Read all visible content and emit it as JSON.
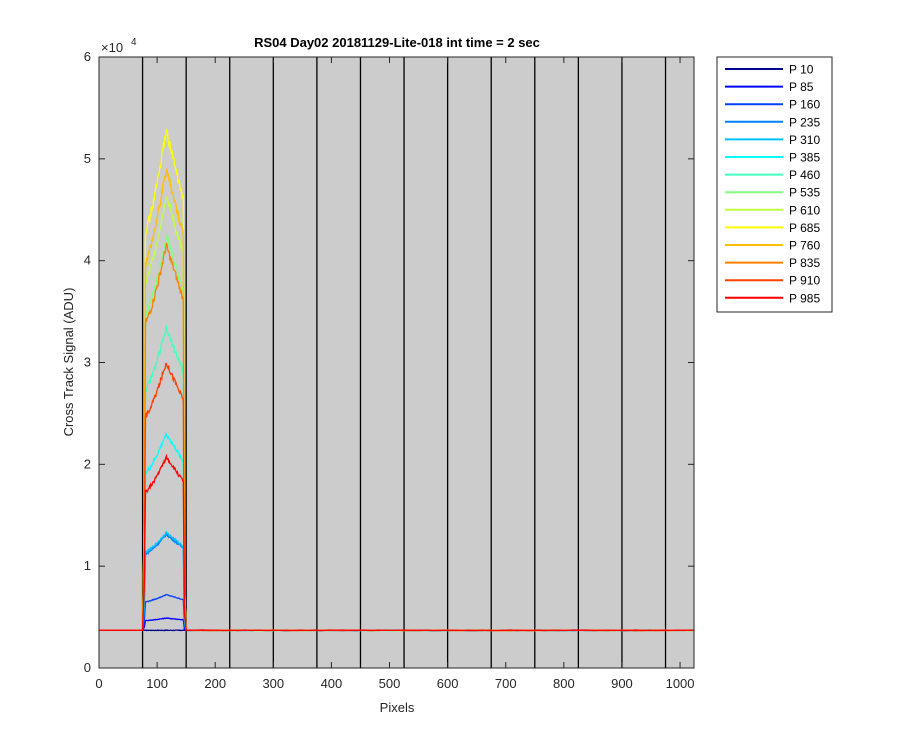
{
  "chart_data": {
    "type": "line",
    "title": "RS04 Day02 20181129-Lite-018 int time = 2 sec",
    "xlabel": "Pixels",
    "ylabel": "Cross Track Signal (ADU)",
    "y_exponent_label": "×10",
    "y_exponent_power": "4",
    "xlim": [
      0,
      1024
    ],
    "ylim": [
      0,
      60000
    ],
    "x_ticks": [
      0,
      100,
      200,
      300,
      400,
      500,
      600,
      700,
      800,
      900,
      1000
    ],
    "x_tick_labels": [
      "0",
      "100",
      "200",
      "300",
      "400",
      "500",
      "600",
      "700",
      "800",
      "900",
      "1000"
    ],
    "y_ticks": [
      0,
      10000,
      20000,
      30000,
      40000,
      50000,
      60000
    ],
    "y_tick_labels": [
      "0",
      "1",
      "2",
      "3",
      "4",
      "5",
      "6"
    ],
    "background_color": "#cccccc",
    "grid": false,
    "separators_x": [
      75,
      150,
      225,
      300,
      375,
      450,
      525,
      600,
      675,
      750,
      825,
      900,
      975
    ],
    "baseline": 3700,
    "plateau_start": 80,
    "plateau_end": 145,
    "legend_position": "outside-right",
    "series": [
      {
        "name": "P 10",
        "color": "#00008f",
        "peak": 3700
      },
      {
        "name": "P 85",
        "color": "#0000ff",
        "peak": 4900
      },
      {
        "name": "P 160",
        "color": "#0040ff",
        "peak": 7200
      },
      {
        "name": "P 235",
        "color": "#0080ff",
        "peak": 13100
      },
      {
        "name": "P 310",
        "color": "#00bfff",
        "peak": 13300
      },
      {
        "name": "P 385",
        "color": "#00ffff",
        "peak": 23000
      },
      {
        "name": "P 460",
        "color": "#40ffbf",
        "peak": 33300
      },
      {
        "name": "P 535",
        "color": "#80ff80",
        "peak": 42500
      },
      {
        "name": "P 610",
        "color": "#bfff40",
        "peak": 46500
      },
      {
        "name": "P 685",
        "color": "#ffff00",
        "peak": 52800
      },
      {
        "name": "P 760",
        "color": "#ffbf00",
        "peak": 49000
      },
      {
        "name": "P 835",
        "color": "#ff8000",
        "peak": 41500
      },
      {
        "name": "P 910",
        "color": "#ff4000",
        "peak": 30000
      },
      {
        "name": "P 985",
        "color": "#ff0000",
        "peak": 20700
      }
    ]
  }
}
